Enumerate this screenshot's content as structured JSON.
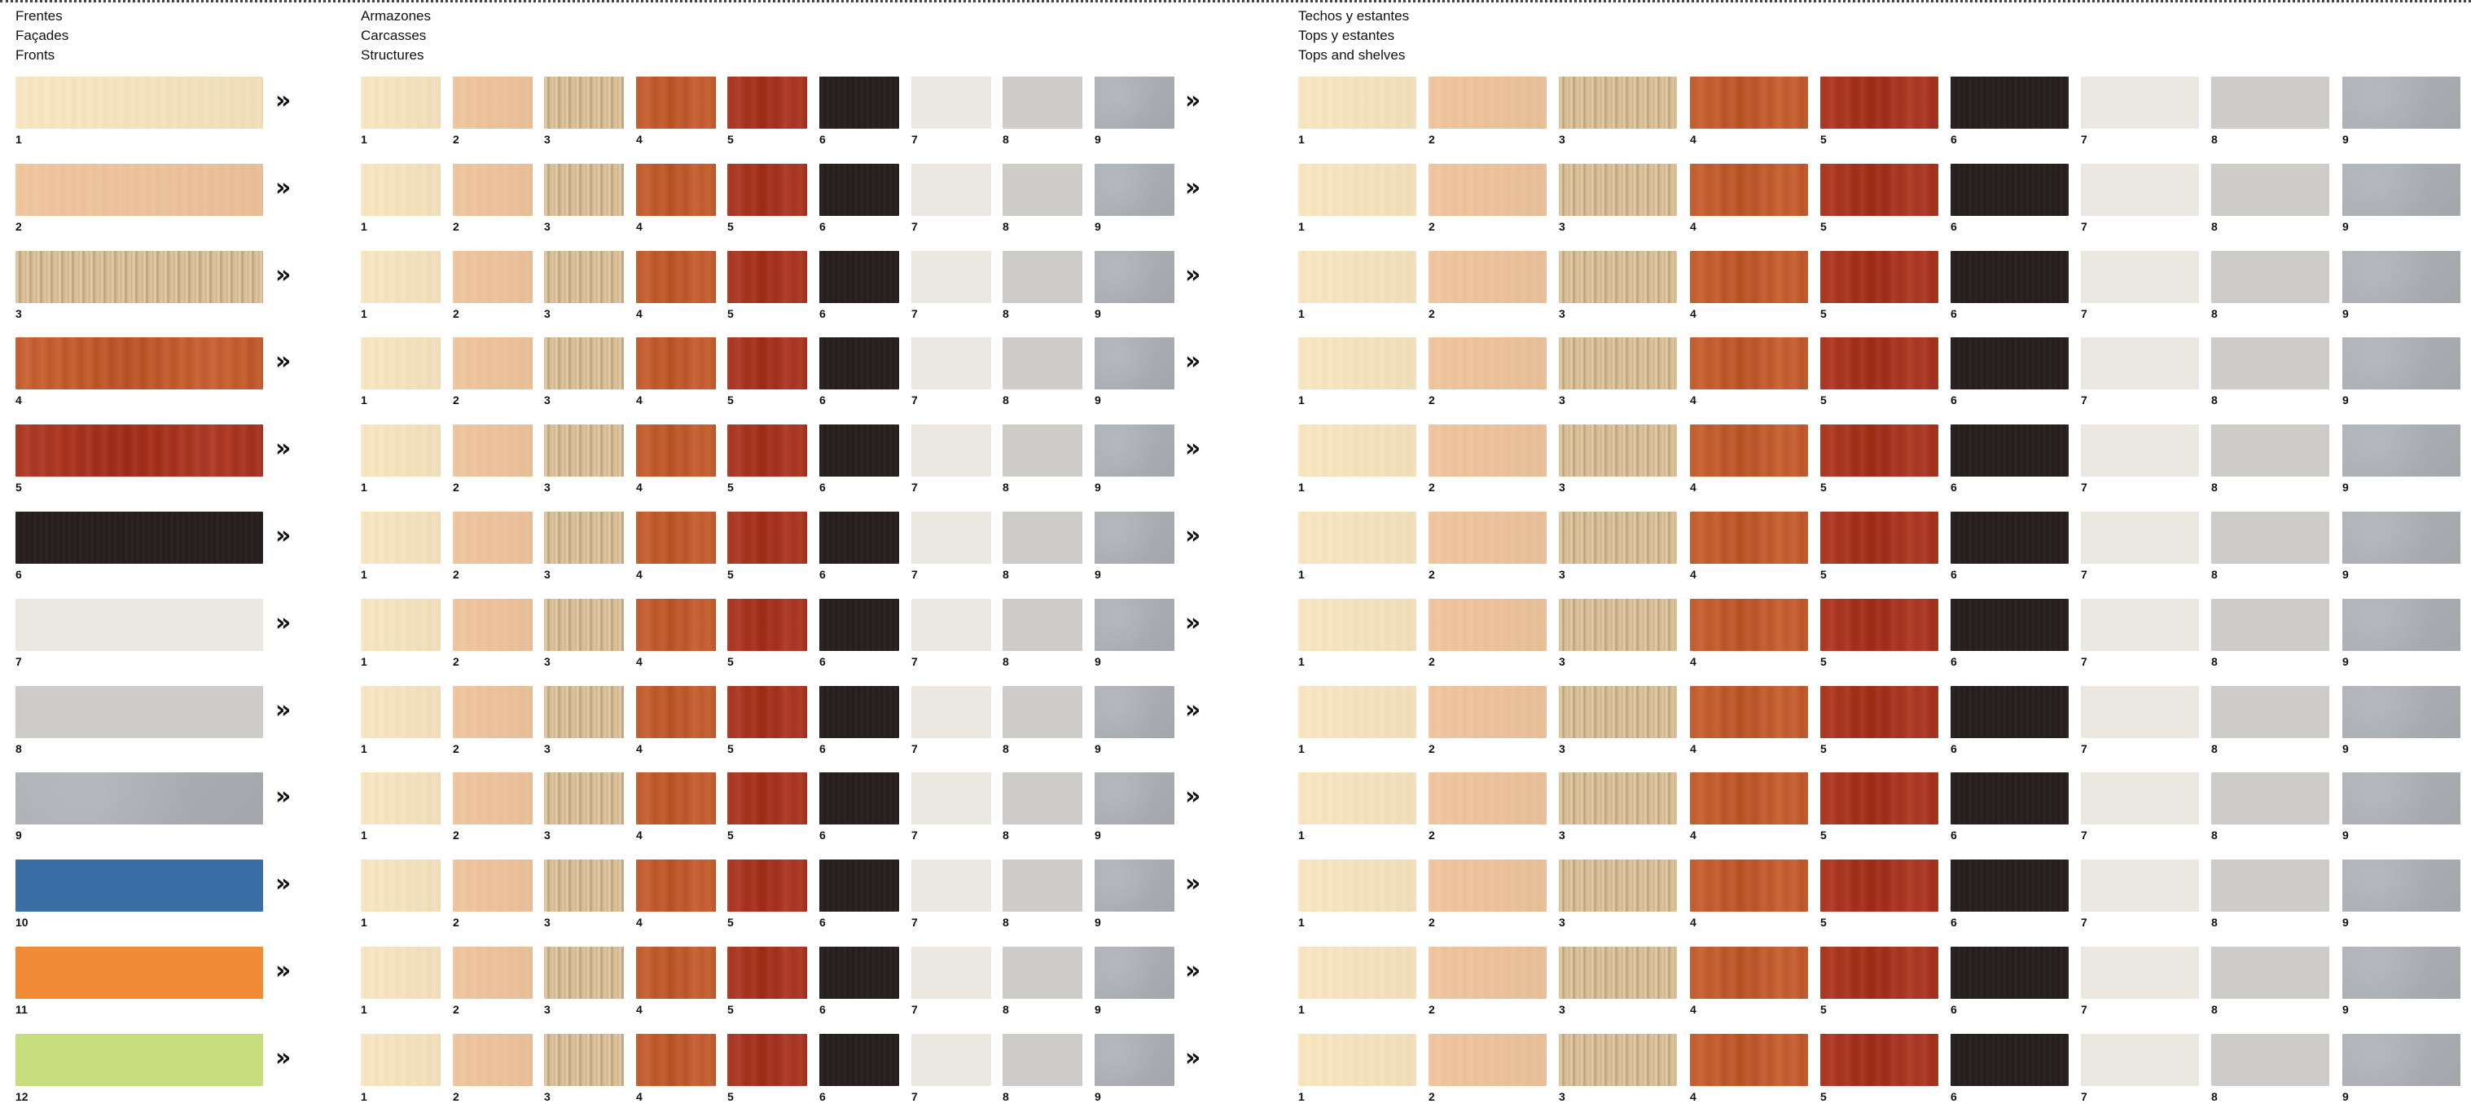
{
  "sections": {
    "fronts": {
      "lines": [
        "Frentes",
        "Façades",
        "Fronts"
      ]
    },
    "carcasses": {
      "lines": [
        "Armazones",
        "Carcasses",
        "Structures"
      ]
    },
    "tops": {
      "lines": [
        "Techos y estantes",
        "Tops y estantes",
        "Tops and shelves"
      ]
    }
  },
  "arrow_glyph": "»",
  "finishes": [
    {
      "label": "1",
      "color": "#f6e4c0",
      "texture": "grain-light"
    },
    {
      "label": "2",
      "color": "#edc49c",
      "texture": "grain-light"
    },
    {
      "label": "3",
      "color": "#d5bc96",
      "texture": "stripes"
    },
    {
      "label": "4",
      "color": "#c55e2f",
      "texture": "grain"
    },
    {
      "label": "5",
      "color": "#aa3622",
      "texture": "grain"
    },
    {
      "label": "6",
      "color": "#251d1b",
      "texture": "grain-dark"
    },
    {
      "label": "7",
      "color": "#ebe8e2",
      "texture": "plain"
    },
    {
      "label": "8",
      "color": "#cdccc8",
      "texture": "plain"
    },
    {
      "label": "9",
      "color": "#a9adb2",
      "texture": "speckle"
    }
  ],
  "fronts": [
    {
      "label": "1",
      "color": "#f6e4c0",
      "texture": "grain-light"
    },
    {
      "label": "2",
      "color": "#edc49c",
      "texture": "grain-light"
    },
    {
      "label": "3",
      "color": "#d5bc96",
      "texture": "stripes"
    },
    {
      "label": "4",
      "color": "#c55e2f",
      "texture": "grain"
    },
    {
      "label": "5",
      "color": "#aa3622",
      "texture": "grain"
    },
    {
      "label": "6",
      "color": "#251d1b",
      "texture": "grain-dark"
    },
    {
      "label": "7",
      "color": "#ebe8e2",
      "texture": "plain"
    },
    {
      "label": "8",
      "color": "#cdccc8",
      "texture": "plain"
    },
    {
      "label": "9",
      "color": "#a9adb2",
      "texture": "speckle"
    },
    {
      "label": "10",
      "color": "#3a6fa5",
      "texture": "plain"
    },
    {
      "label": "11",
      "color": "#f08a35",
      "texture": "plain"
    },
    {
      "label": "12",
      "color": "#c8de7e",
      "texture": "plain"
    }
  ]
}
